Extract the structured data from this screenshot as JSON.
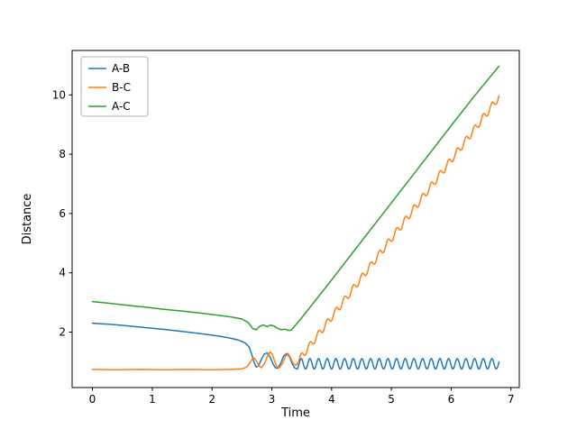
{
  "figure": {
    "background": "#ffffff",
    "axis_color": "#000000"
  },
  "chart_data": {
    "type": "line",
    "title": "",
    "xlabel": "Time",
    "ylabel": "Distance",
    "xlim": [
      -0.34,
      7.14
    ],
    "ylim": [
      0.13,
      11.5
    ],
    "xticks": [
      0,
      1,
      2,
      3,
      4,
      5,
      6,
      7
    ],
    "yticks": [
      2,
      4,
      6,
      8,
      10
    ],
    "grid": false,
    "legend_position": "upper left",
    "legend_entries": [
      "A-B",
      "B-C",
      "A-C"
    ],
    "series": [
      {
        "name": "A-B",
        "color": "#1f77b4",
        "segments": [
          {
            "type": "poly",
            "points": [
              [
                0,
                2.3
              ],
              [
                0.3,
                2.26
              ],
              [
                0.6,
                2.21
              ],
              [
                0.9,
                2.15
              ],
              [
                1.2,
                2.09
              ],
              [
                1.5,
                2.02
              ],
              [
                1.8,
                1.95
              ],
              [
                2.1,
                1.87
              ],
              [
                2.3,
                1.8
              ],
              [
                2.45,
                1.73
              ],
              [
                2.55,
                1.64
              ],
              [
                2.62,
                1.5
              ],
              [
                2.66,
                1.28
              ],
              [
                2.7,
                1.0
              ],
              [
                2.74,
                0.82
              ],
              [
                2.78,
                0.86
              ],
              [
                2.82,
                1.05
              ],
              [
                2.87,
                1.25
              ],
              [
                2.92,
                1.3
              ],
              [
                2.97,
                1.17
              ],
              [
                3.02,
                0.93
              ],
              [
                3.06,
                0.8
              ],
              [
                3.1,
                0.78
              ],
              [
                3.15,
                0.95
              ],
              [
                3.2,
                1.2
              ],
              [
                3.25,
                1.28
              ],
              [
                3.3,
                1.15
              ],
              [
                3.34,
                0.94
              ],
              [
                3.38,
                0.8
              ],
              [
                3.42,
                0.755
              ]
            ]
          },
          {
            "type": "osc",
            "x0": 3.42,
            "x1": 6.8,
            "y0": 0.93,
            "y1": 0.93,
            "amp": 0.175,
            "period": 0.145,
            "phase": -1.5708
          }
        ]
      },
      {
        "name": "B-C",
        "color": "#ff7f0e",
        "segments": [
          {
            "type": "poly",
            "points": [
              [
                0,
                0.74
              ],
              [
                0.4,
                0.73
              ],
              [
                0.8,
                0.74
              ],
              [
                1.2,
                0.73
              ],
              [
                1.6,
                0.74
              ],
              [
                2.0,
                0.73
              ],
              [
                2.3,
                0.74
              ],
              [
                2.5,
                0.76
              ],
              [
                2.58,
                0.82
              ],
              [
                2.63,
                0.95
              ],
              [
                2.67,
                1.08
              ],
              [
                2.71,
                1.12
              ],
              [
                2.75,
                1.0
              ],
              [
                2.79,
                0.85
              ],
              [
                2.83,
                0.8
              ],
              [
                2.88,
                0.95
              ],
              [
                2.93,
                1.2
              ],
              [
                2.97,
                1.33
              ],
              [
                3.01,
                1.25
              ],
              [
                3.05,
                1.0
              ],
              [
                3.09,
                0.83
              ],
              [
                3.13,
                0.8
              ],
              [
                3.18,
                0.95
              ],
              [
                3.23,
                1.18
              ],
              [
                3.27,
                1.28
              ],
              [
                3.31,
                1.15
              ],
              [
                3.35,
                0.97
              ],
              [
                3.4,
                0.88
              ],
              [
                3.44,
                0.95
              ]
            ]
          },
          {
            "type": "osc",
            "x0": 3.44,
            "x1": 6.8,
            "y0": 1.02,
            "y1": 9.93,
            "amp": 0.12,
            "period": 0.145,
            "phase": -0.7
          }
        ]
      },
      {
        "name": "A-C",
        "color": "#2ca02c",
        "segments": [
          {
            "type": "poly",
            "points": [
              [
                0,
                3.03
              ],
              [
                0.3,
                2.97
              ],
              [
                0.6,
                2.9
              ],
              [
                0.9,
                2.84
              ],
              [
                1.2,
                2.77
              ],
              [
                1.5,
                2.71
              ],
              [
                1.8,
                2.64
              ],
              [
                2.1,
                2.57
              ],
              [
                2.35,
                2.5
              ],
              [
                2.5,
                2.44
              ],
              [
                2.6,
                2.33
              ],
              [
                2.68,
                2.12
              ],
              [
                2.74,
                2.08
              ],
              [
                2.8,
                2.2
              ],
              [
                2.86,
                2.24
              ],
              [
                2.92,
                2.18
              ],
              [
                2.98,
                2.24
              ],
              [
                3.04,
                2.2
              ],
              [
                3.1,
                2.12
              ],
              [
                3.16,
                2.08
              ],
              [
                3.22,
                2.1
              ],
              [
                3.28,
                2.05
              ],
              [
                3.33,
                2.08
              ]
            ]
          },
          {
            "type": "poly",
            "points": [
              [
                3.33,
                2.08
              ],
              [
                3.5,
                2.48
              ],
              [
                4.0,
                3.76
              ],
              [
                4.5,
                5.06
              ],
              [
                5.0,
                6.36
              ],
              [
                5.5,
                7.66
              ],
              [
                6.0,
                8.96
              ],
              [
                6.4,
                9.99
              ],
              [
                6.8,
                10.97
              ]
            ]
          }
        ]
      }
    ]
  }
}
